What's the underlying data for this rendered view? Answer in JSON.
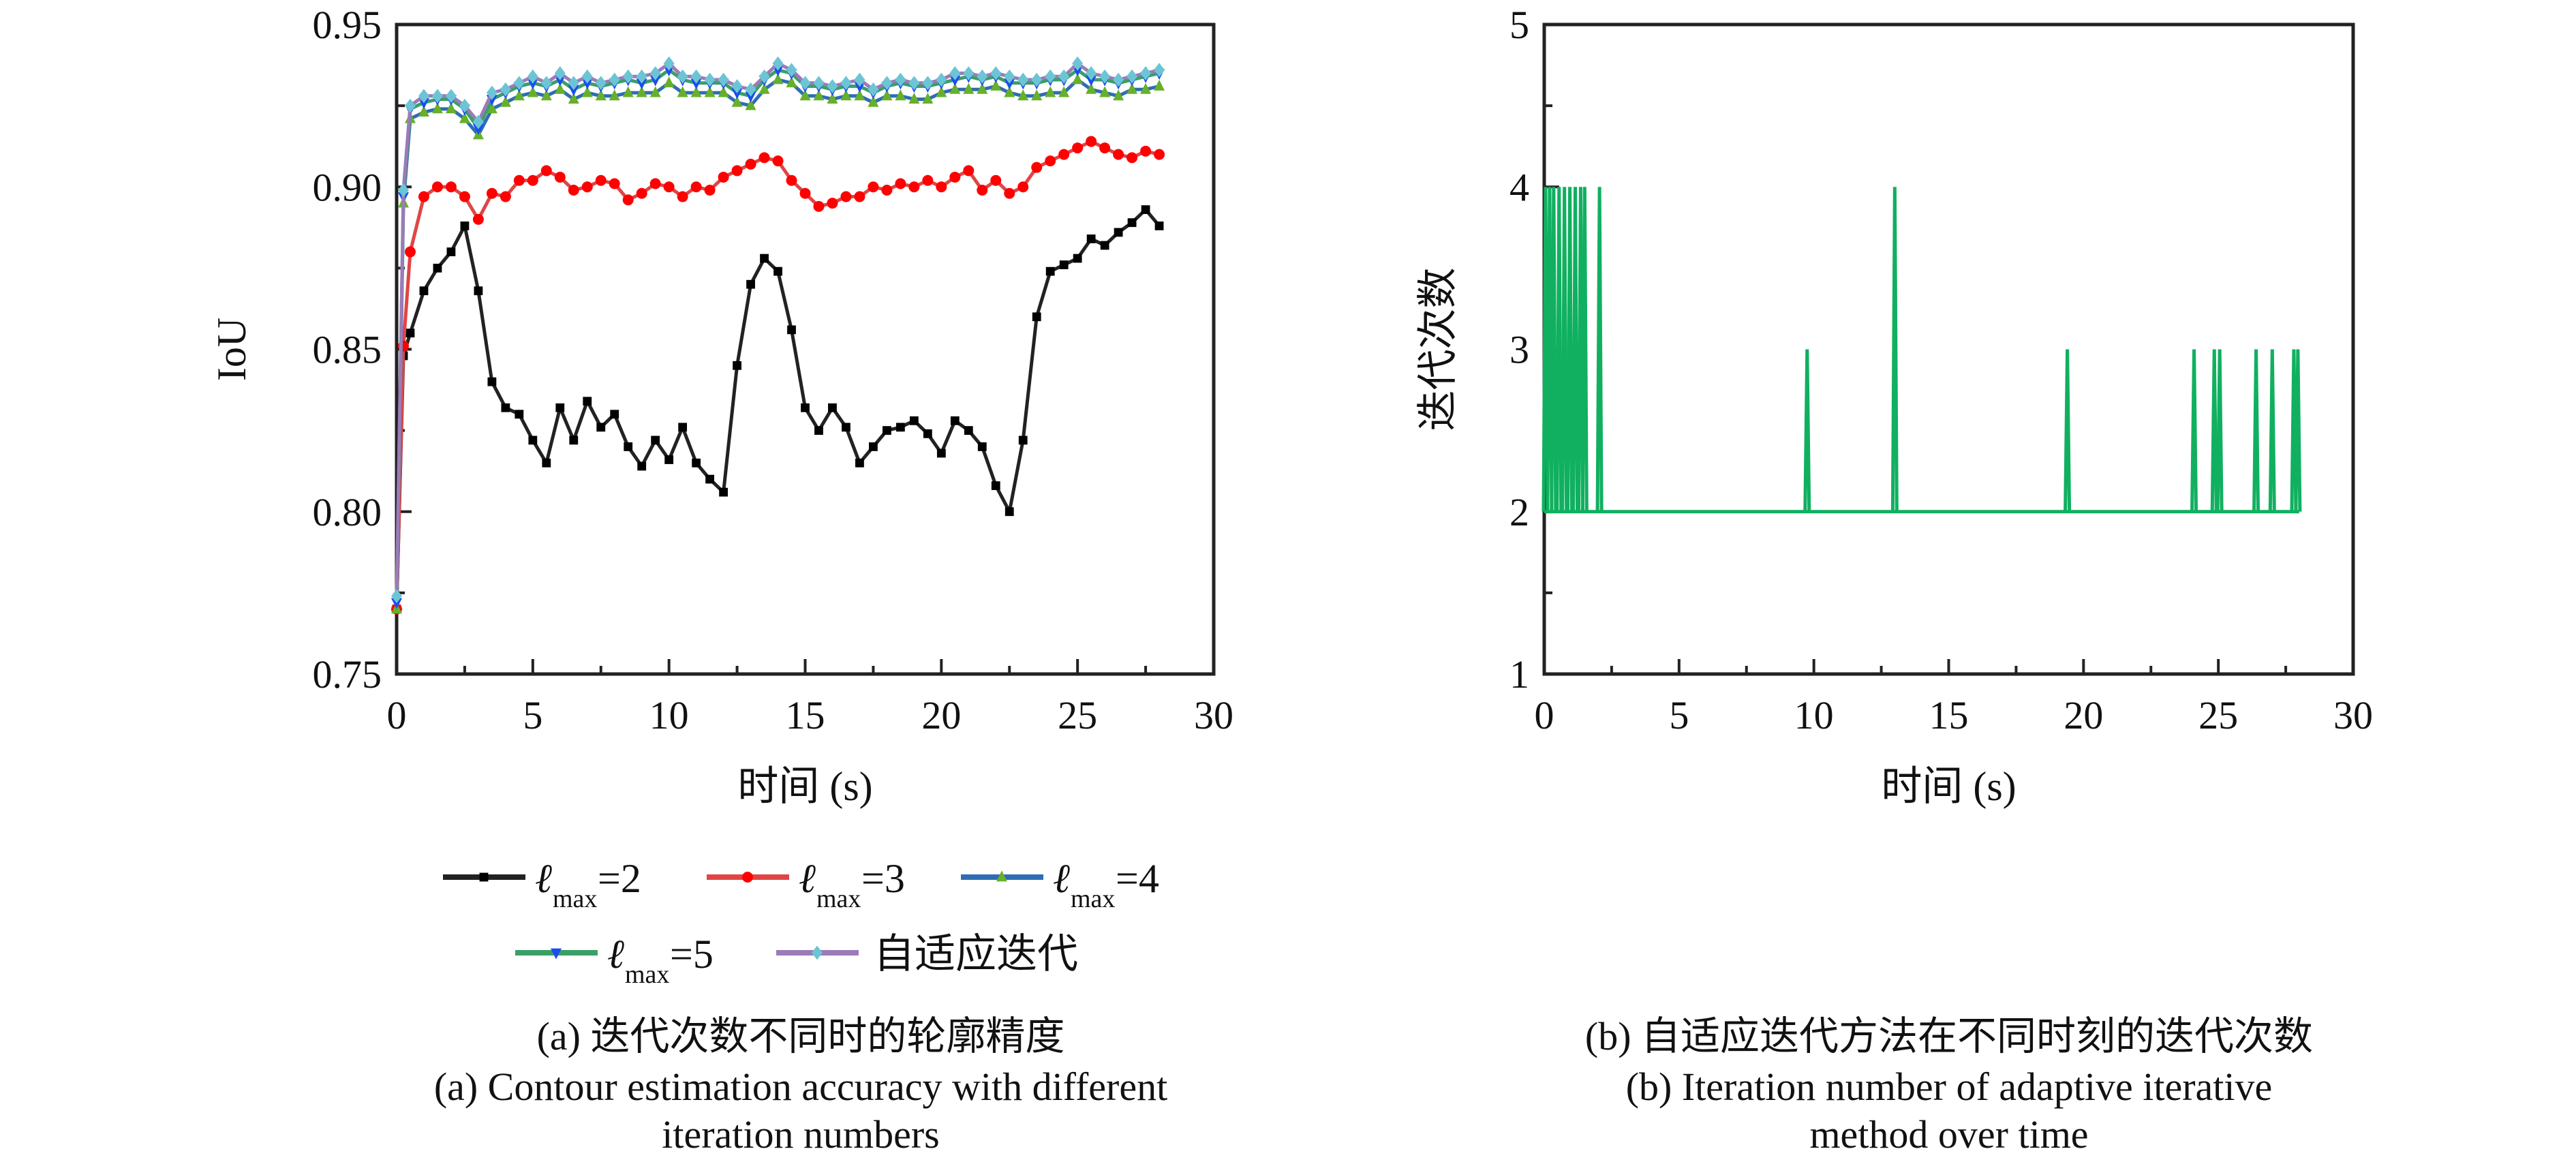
{
  "chart_data": [
    {
      "type": "line",
      "title": "",
      "xlabel": "时间 (s)",
      "ylabel": "IoU",
      "xlim": [
        0,
        30
      ],
      "ylim": [
        0.75,
        0.95
      ],
      "xticks": [
        "0",
        "5",
        "10",
        "15",
        "20",
        "25",
        "30"
      ],
      "yticks": [
        "0.75",
        "0.80",
        "0.85",
        "0.90",
        "0.95"
      ],
      "grid": false,
      "legend_placement": "bottom",
      "caption_zh": "(a) 迭代次数不同时的轮廓精度",
      "caption_en_1": "(a) Contour estimation accuracy with different",
      "caption_en_2": "iteration numbers",
      "x": [
        0,
        0.25,
        0.5,
        1,
        1.5,
        2,
        2.5,
        3,
        3.5,
        4,
        4.5,
        5,
        5.5,
        6,
        6.5,
        7,
        7.5,
        8,
        8.5,
        9,
        9.5,
        10,
        10.5,
        11,
        11.5,
        12,
        12.5,
        13,
        13.5,
        14,
        14.5,
        15,
        15.5,
        16,
        16.5,
        17,
        17.5,
        18,
        18.5,
        19,
        19.5,
        20,
        20.5,
        21,
        21.5,
        22,
        22.5,
        23,
        23.5,
        24,
        24.5,
        25,
        25.5,
        26,
        26.5,
        27,
        27.5,
        28
      ],
      "series": [
        {
          "name": "ℓmax=2",
          "label_main": "ℓ",
          "label_sub": "max",
          "label_tail": "=2",
          "line_color": "#222222",
          "marker_color": "#000000",
          "marker": "square",
          "values": [
            0.77,
            0.848,
            0.855,
            0.868,
            0.875,
            0.88,
            0.888,
            0.868,
            0.84,
            0.832,
            0.83,
            0.822,
            0.815,
            0.832,
            0.822,
            0.834,
            0.826,
            0.83,
            0.82,
            0.814,
            0.822,
            0.816,
            0.826,
            0.815,
            0.81,
            0.806,
            0.845,
            0.87,
            0.878,
            0.874,
            0.856,
            0.832,
            0.825,
            0.832,
            0.826,
            0.815,
            0.82,
            0.825,
            0.826,
            0.828,
            0.824,
            0.818,
            0.828,
            0.825,
            0.82,
            0.808,
            0.8,
            0.822,
            0.86,
            0.874,
            0.876,
            0.878,
            0.884,
            0.882,
            0.886,
            0.889,
            0.893,
            0.888
          ]
        },
        {
          "name": "ℓmax=3",
          "label_main": "ℓ",
          "label_sub": "max",
          "label_tail": "=3",
          "line_color": "#e04545",
          "marker_color": "#ff0000",
          "marker": "circle",
          "values": [
            0.77,
            0.851,
            0.88,
            0.897,
            0.9,
            0.9,
            0.897,
            0.89,
            0.898,
            0.897,
            0.902,
            0.902,
            0.905,
            0.903,
            0.899,
            0.9,
            0.902,
            0.901,
            0.896,
            0.898,
            0.901,
            0.9,
            0.897,
            0.9,
            0.899,
            0.903,
            0.905,
            0.907,
            0.909,
            0.908,
            0.902,
            0.898,
            0.894,
            0.895,
            0.897,
            0.897,
            0.9,
            0.899,
            0.901,
            0.9,
            0.902,
            0.9,
            0.903,
            0.905,
            0.899,
            0.902,
            0.898,
            0.9,
            0.906,
            0.908,
            0.91,
            0.912,
            0.914,
            0.912,
            0.91,
            0.909,
            0.911,
            0.91
          ]
        },
        {
          "name": "ℓmax=4",
          "label_main": "ℓ",
          "label_sub": "max",
          "label_tail": "=4",
          "line_color": "#2e6db4",
          "marker_color": "#66b02a",
          "marker": "triangle-up",
          "values": [
            0.77,
            0.895,
            0.921,
            0.923,
            0.924,
            0.924,
            0.921,
            0.916,
            0.924,
            0.926,
            0.928,
            0.929,
            0.928,
            0.93,
            0.927,
            0.929,
            0.928,
            0.928,
            0.929,
            0.929,
            0.929,
            0.932,
            0.929,
            0.929,
            0.929,
            0.929,
            0.926,
            0.925,
            0.93,
            0.933,
            0.932,
            0.928,
            0.928,
            0.927,
            0.928,
            0.928,
            0.926,
            0.928,
            0.928,
            0.927,
            0.927,
            0.929,
            0.93,
            0.93,
            0.93,
            0.931,
            0.929,
            0.928,
            0.928,
            0.929,
            0.929,
            0.933,
            0.93,
            0.929,
            0.928,
            0.93,
            0.93,
            0.931
          ]
        },
        {
          "name": "ℓmax=5",
          "label_main": "ℓ",
          "label_sub": "max",
          "label_tail": "=5",
          "line_color": "#3aa066",
          "marker_color": "#1a4ef0",
          "marker": "triangle-down",
          "values": [
            0.772,
            0.897,
            0.924,
            0.926,
            0.927,
            0.927,
            0.924,
            0.918,
            0.927,
            0.929,
            0.931,
            0.932,
            0.931,
            0.933,
            0.93,
            0.932,
            0.931,
            0.932,
            0.933,
            0.932,
            0.933,
            0.936,
            0.933,
            0.932,
            0.932,
            0.932,
            0.929,
            0.928,
            0.933,
            0.936,
            0.935,
            0.931,
            0.931,
            0.93,
            0.931,
            0.931,
            0.929,
            0.931,
            0.932,
            0.931,
            0.931,
            0.932,
            0.933,
            0.934,
            0.933,
            0.934,
            0.932,
            0.932,
            0.932,
            0.933,
            0.933,
            0.936,
            0.933,
            0.933,
            0.932,
            0.933,
            0.934,
            0.935
          ]
        },
        {
          "name": "自适应迭代",
          "label_main": "自适应迭代",
          "label_sub": "",
          "label_tail": "",
          "line_color": "#9b7bb8",
          "marker_color": "#6cc5d5",
          "marker": "diamond",
          "values": [
            0.774,
            0.899,
            0.925,
            0.928,
            0.928,
            0.928,
            0.925,
            0.92,
            0.929,
            0.93,
            0.932,
            0.934,
            0.932,
            0.935,
            0.932,
            0.934,
            0.932,
            0.933,
            0.934,
            0.934,
            0.935,
            0.938,
            0.934,
            0.934,
            0.933,
            0.933,
            0.931,
            0.93,
            0.934,
            0.938,
            0.936,
            0.932,
            0.932,
            0.931,
            0.932,
            0.933,
            0.93,
            0.932,
            0.933,
            0.932,
            0.932,
            0.933,
            0.935,
            0.935,
            0.934,
            0.935,
            0.934,
            0.933,
            0.933,
            0.934,
            0.934,
            0.938,
            0.935,
            0.934,
            0.933,
            0.934,
            0.935,
            0.936
          ]
        }
      ]
    },
    {
      "type": "line",
      "title": "",
      "xlabel": "时间 (s)",
      "ylabel": "迭代次数",
      "xlim": [
        0,
        30
      ],
      "ylim": [
        1,
        5
      ],
      "xticks": [
        "0",
        "5",
        "10",
        "15",
        "20",
        "25",
        "30"
      ],
      "yticks": [
        "1",
        "2",
        "3",
        "4",
        "5"
      ],
      "grid": false,
      "caption_zh": "(b) 自适应迭代方法在不同时刻的迭代次数",
      "caption_en_1": "(b) Iteration number of adaptive iterative",
      "caption_en_2": "method over time",
      "series": [
        {
          "name": "自适应迭代",
          "line_color": "#10b060",
          "baseline": 2,
          "x_end": 28,
          "spikes": [
            {
              "t": 0.05,
              "value": 4
            },
            {
              "t": 0.2,
              "value": 4
            },
            {
              "t": 0.35,
              "value": 4
            },
            {
              "t": 0.55,
              "value": 4
            },
            {
              "t": 0.75,
              "value": 4
            },
            {
              "t": 0.95,
              "value": 4
            },
            {
              "t": 1.15,
              "value": 4
            },
            {
              "t": 1.35,
              "value": 4
            },
            {
              "t": 1.5,
              "value": 4
            },
            {
              "t": 2.05,
              "value": 4
            },
            {
              "t": 9.75,
              "value": 3
            },
            {
              "t": 13.0,
              "value": 4
            },
            {
              "t": 19.4,
              "value": 3
            },
            {
              "t": 24.1,
              "value": 3
            },
            {
              "t": 24.85,
              "value": 3
            },
            {
              "t": 25.05,
              "value": 3
            },
            {
              "t": 26.4,
              "value": 3
            },
            {
              "t": 27.0,
              "value": 3
            },
            {
              "t": 27.8,
              "value": 3
            },
            {
              "t": 27.95,
              "value": 3
            }
          ]
        }
      ]
    }
  ]
}
